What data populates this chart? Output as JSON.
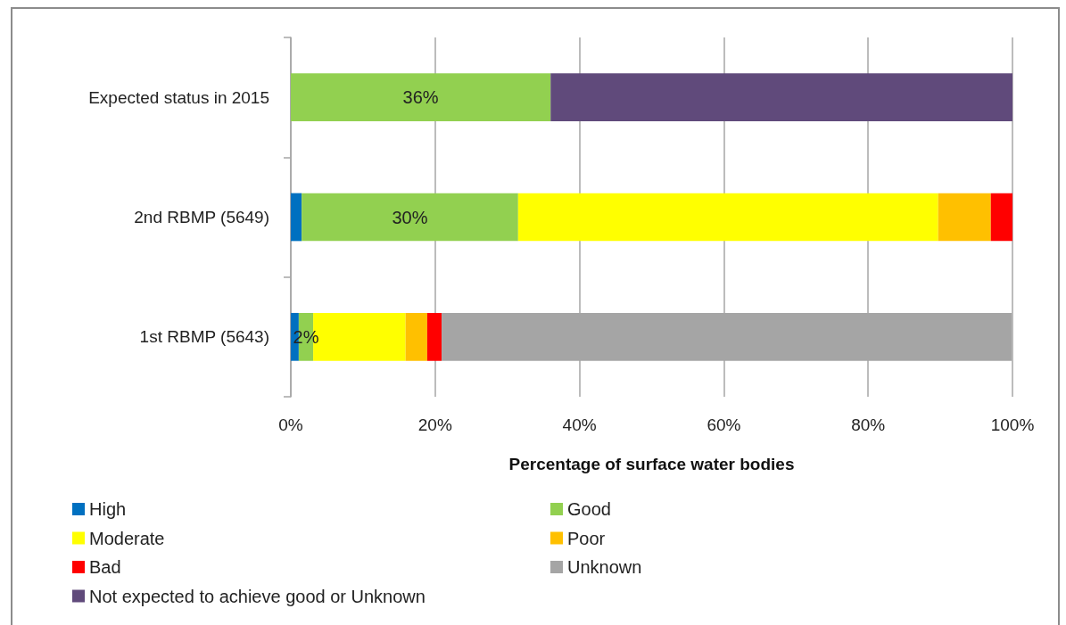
{
  "chart_data": {
    "type": "bar",
    "orientation": "horizontal",
    "stacked": true,
    "categories": [
      "Expected status in 2015",
      "2nd RBMP (5649)",
      "1st RBMP (5643)"
    ],
    "xlabel": "Percentage of surface water bodies",
    "xlim": [
      0,
      100
    ],
    "xticks": [
      {
        "value": 0,
        "label": "0%"
      },
      {
        "value": 20,
        "label": "20%"
      },
      {
        "value": 40,
        "label": "40%"
      },
      {
        "value": 60,
        "label": "60%"
      },
      {
        "value": 80,
        "label": "80%"
      },
      {
        "value": 100,
        "label": "100%"
      }
    ],
    "grid": "x",
    "legend": "bottom",
    "series": [
      {
        "name": "High",
        "color": "#0070c0",
        "values": [
          null,
          1.5,
          1.1
        ]
      },
      {
        "name": "Good",
        "color": "#92d050",
        "values": [
          36,
          30,
          2
        ],
        "value_labels": [
          "36%",
          "30%",
          "2%"
        ]
      },
      {
        "name": "Moderate",
        "color": "#ffff00",
        "values": [
          null,
          58.2,
          12.8
        ]
      },
      {
        "name": "Poor",
        "color": "#ffc000",
        "values": [
          null,
          7.3,
          3.0
        ]
      },
      {
        "name": "Bad",
        "color": "#ff0000",
        "values": [
          null,
          3.0,
          2.0
        ]
      },
      {
        "name": "Unknown",
        "color": "#a5a5a5",
        "values": [
          null,
          null,
          79.0
        ]
      },
      {
        "name": "Not expected to achieve good or Unknown",
        "color": "#604a7b",
        "values": [
          64,
          null,
          null
        ]
      }
    ]
  }
}
